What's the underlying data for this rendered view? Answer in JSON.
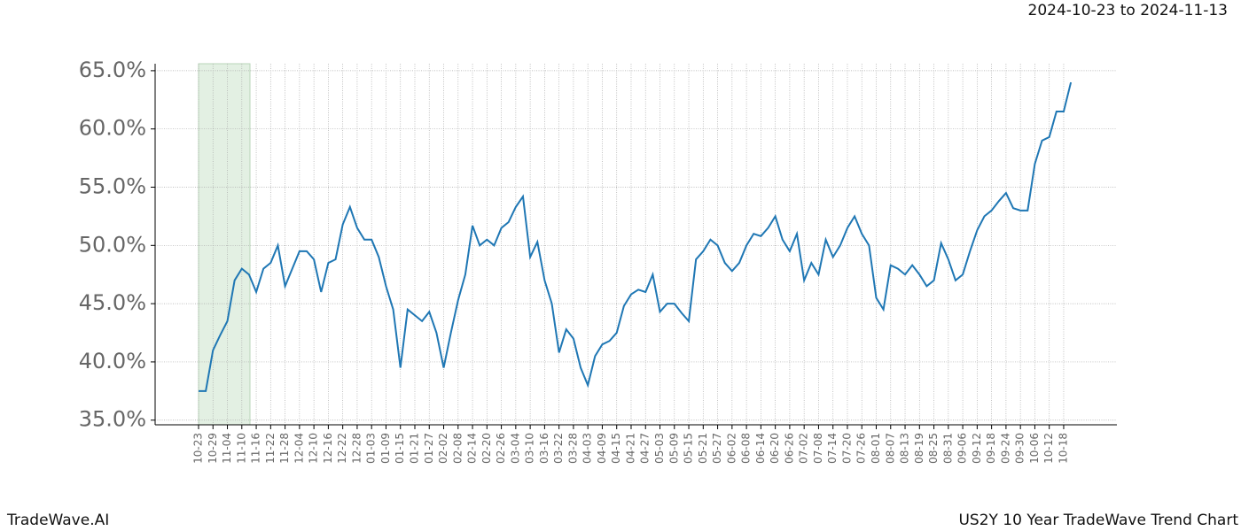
{
  "chart_data": {
    "type": "line",
    "subtitle": "2024-10-23 to 2024-11-13",
    "brand": "TradeWave.AI",
    "title": "US2Y 10 Year TradeWave Trend Chart",
    "color": "#1f77b4",
    "grid": true,
    "categories": [
      "10-23",
      null,
      "10-29",
      null,
      "11-04",
      null,
      "11-10",
      null,
      "11-16",
      null,
      "11-22",
      null,
      "11-28",
      null,
      "12-04",
      null,
      "12-10",
      null,
      "12-16",
      null,
      "12-22",
      null,
      "12-28",
      null,
      "01-03",
      null,
      "01-09",
      null,
      "01-15",
      null,
      "01-21",
      null,
      "01-27",
      null,
      "02-02",
      null,
      "02-08",
      null,
      "02-14",
      null,
      "02-20",
      null,
      "02-26",
      null,
      "03-04",
      null,
      "03-10",
      null,
      "03-16",
      null,
      "03-22",
      null,
      "03-28",
      null,
      "04-03",
      null,
      "04-09",
      null,
      "04-15",
      null,
      "04-21",
      null,
      "04-27",
      null,
      "05-03",
      null,
      "05-09",
      null,
      "05-15",
      null,
      "05-21",
      null,
      "05-27",
      null,
      "06-02",
      null,
      "06-08",
      null,
      "06-14",
      null,
      "06-20",
      null,
      "06-26",
      null,
      "07-02",
      null,
      "07-08",
      null,
      "07-14",
      null,
      "07-20",
      null,
      "07-26",
      null,
      "08-01",
      null,
      "08-07",
      null,
      "08-13",
      null,
      "08-19",
      null,
      "08-25",
      null,
      "08-31",
      null,
      "09-06",
      null,
      "09-12",
      null,
      "09-18",
      null,
      "09-24",
      null,
      "09-30",
      null,
      "10-06",
      null,
      "10-12",
      null,
      "10-18",
      null
    ],
    "values": [
      37.5,
      37.5,
      41,
      42.3,
      43.5,
      47,
      48,
      47.5,
      46,
      48,
      48.5,
      50,
      46.5,
      48,
      49.5,
      49.5,
      48.8,
      46,
      48.5,
      48.8,
      51.8,
      53.3,
      51.5,
      50.5,
      50.5,
      49,
      46.5,
      44.5,
      39.5,
      44.5,
      44,
      43.5,
      44.3,
      42.5,
      39.5,
      42.5,
      45.3,
      47.5,
      51.7,
      50,
      50.5,
      50,
      51.5,
      52,
      53.3,
      54.2,
      49,
      50.3,
      47,
      45,
      40.8,
      42.8,
      42,
      39.5,
      38,
      40.5,
      41.5,
      41.8,
      42.5,
      44.8,
      45.8,
      46.2,
      46,
      47.5,
      44.3,
      45,
      45,
      44.2,
      43.5,
      48.8,
      49.5,
      50.5,
      50,
      48.5,
      47.8,
      48.5,
      50,
      51,
      50.8,
      51.5,
      52.5,
      50.5,
      49.5,
      51,
      47,
      48.5,
      47.5,
      50.5,
      49,
      50,
      51.5,
      52.5,
      51,
      50,
      45.5,
      44.5,
      48.3,
      48,
      47.5,
      48.3,
      47.5,
      46.5,
      47,
      50.2,
      48.8,
      47,
      47.5,
      49.5,
      51.3,
      52.5,
      53,
      53.8,
      54.5,
      53.2,
      53,
      53,
      57,
      59,
      59.3,
      61.5,
      61.5,
      64
    ],
    "ylim": [
      34.6,
      65.6
    ],
    "yticks": [
      {
        "value": 35,
        "label": "35.0%"
      },
      {
        "value": 40,
        "label": "40.0%"
      },
      {
        "value": 45,
        "label": "45.0%"
      },
      {
        "value": 50,
        "label": "50.0%"
      },
      {
        "value": 55,
        "label": "55.0%"
      },
      {
        "value": 60,
        "label": "60.0%"
      },
      {
        "value": 65,
        "label": "65.0%"
      }
    ]
  }
}
